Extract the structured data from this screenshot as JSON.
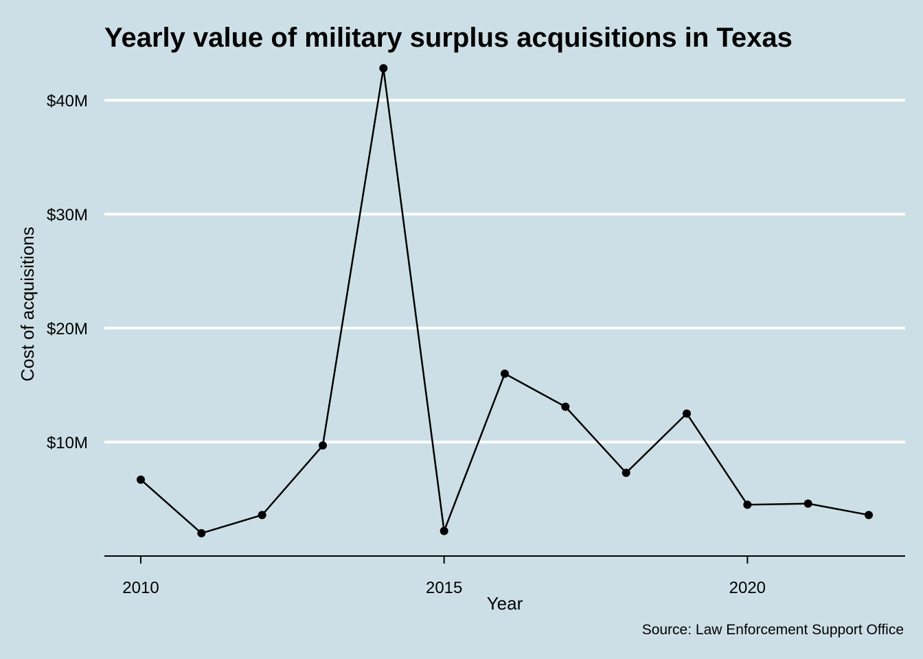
{
  "colors": {
    "background": "#cddfe6",
    "gridline": "#ffffff",
    "line": "#000000",
    "point": "#000000"
  },
  "chart_data": {
    "type": "line",
    "title": "Yearly value of military surplus acquisitions in Texas",
    "xlabel": "Year",
    "ylabel": "Cost of acquisitions",
    "caption": "Source: Law Enforcement Support Office",
    "x": [
      2010,
      2011,
      2012,
      2013,
      2014,
      2015,
      2016,
      2017,
      2018,
      2019,
      2020,
      2021,
      2022
    ],
    "series": [
      {
        "values": [
          6700000,
          2000000,
          3600000,
          9700000,
          42800000,
          2200000,
          16000000,
          13100000,
          7300000,
          12500000,
          4500000,
          4600000,
          3600000
        ]
      }
    ],
    "xlim": [
      2009.4,
      2022.6
    ],
    "ylim": [
      0,
      43000000
    ],
    "x_ticks": [
      2010,
      2015,
      2020
    ],
    "x_tick_labels": [
      "2010",
      "2015",
      "2020"
    ],
    "y_ticks": [
      10000000,
      20000000,
      30000000,
      40000000
    ],
    "y_tick_labels": [
      "$10M",
      "$20M",
      "$30M",
      "$40M"
    ],
    "grid": "horizontal-major",
    "legend": "none"
  }
}
